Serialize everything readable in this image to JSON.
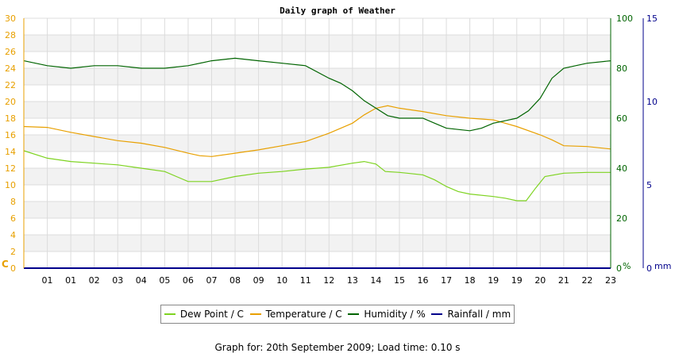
{
  "chart_data": {
    "type": "line",
    "title": "Daily graph of Weather",
    "x_ticks": [
      "01",
      "01",
      "02",
      "03",
      "04",
      "05",
      "06",
      "07",
      "08",
      "09",
      "10",
      "11",
      "12",
      "13",
      "14",
      "15",
      "16",
      "17",
      "18",
      "19",
      "19",
      "20",
      "21",
      "22",
      "23"
    ],
    "y_left": {
      "label": "C",
      "ticks": [
        0,
        2,
        4,
        6,
        8,
        10,
        12,
        14,
        16,
        18,
        20,
        22,
        24,
        26,
        28,
        30
      ],
      "range": [
        0,
        30
      ],
      "color": "#e8a000"
    },
    "y_right1": {
      "label": "%",
      "ticks": [
        0,
        20,
        40,
        60,
        80,
        100
      ],
      "range": [
        0,
        100
      ],
      "color": "#006400"
    },
    "y_right2": {
      "label": "mm",
      "ticks": [
        0,
        5,
        10,
        15
      ],
      "range": [
        0,
        15
      ],
      "color": "#00008b"
    },
    "series": [
      {
        "name": "Dew Point / C",
        "axis": "C",
        "color": "#7ed321",
        "points": [
          [
            0,
            14.1
          ],
          [
            1,
            13.2
          ],
          [
            2,
            12.8
          ],
          [
            3,
            12.6
          ],
          [
            4,
            12.4
          ],
          [
            5,
            12.0
          ],
          [
            6,
            11.6
          ],
          [
            6.5,
            11.0
          ],
          [
            7,
            10.4
          ],
          [
            8,
            10.4
          ],
          [
            9,
            11.0
          ],
          [
            10,
            11.4
          ],
          [
            11,
            11.6
          ],
          [
            12,
            11.9
          ],
          [
            13,
            12.1
          ],
          [
            14,
            12.6
          ],
          [
            14.5,
            12.8
          ],
          [
            15,
            12.5
          ],
          [
            15.4,
            11.6
          ],
          [
            16,
            11.5
          ],
          [
            17,
            11.2
          ],
          [
            17.5,
            10.6
          ],
          [
            18,
            9.8
          ],
          [
            18.5,
            9.2
          ],
          [
            19,
            8.9
          ],
          [
            20,
            8.6
          ],
          [
            20.5,
            8.4
          ],
          [
            21,
            8.1
          ],
          [
            21.4,
            8.1
          ],
          [
            21.8,
            9.6
          ],
          [
            22.2,
            11.0
          ],
          [
            23,
            11.4
          ],
          [
            24,
            11.5
          ],
          [
            25,
            11.5
          ]
        ]
      },
      {
        "name": "Temperature / C",
        "axis": "C",
        "color": "#e8a000",
        "points": [
          [
            0,
            17.0
          ],
          [
            1,
            16.9
          ],
          [
            2,
            16.3
          ],
          [
            3,
            15.8
          ],
          [
            4,
            15.3
          ],
          [
            5,
            15.0
          ],
          [
            6,
            14.5
          ],
          [
            7,
            13.8
          ],
          [
            7.5,
            13.5
          ],
          [
            8,
            13.4
          ],
          [
            9,
            13.8
          ],
          [
            10,
            14.2
          ],
          [
            11,
            14.7
          ],
          [
            12,
            15.2
          ],
          [
            13,
            16.2
          ],
          [
            14,
            17.4
          ],
          [
            14.5,
            18.4
          ],
          [
            15,
            19.2
          ],
          [
            15.5,
            19.5
          ],
          [
            16,
            19.2
          ],
          [
            17,
            18.8
          ],
          [
            18,
            18.3
          ],
          [
            19,
            18.0
          ],
          [
            20,
            17.8
          ],
          [
            21,
            17.0
          ],
          [
            22,
            16.0
          ],
          [
            22.5,
            15.4
          ],
          [
            23,
            14.7
          ],
          [
            24,
            14.6
          ],
          [
            25,
            14.3
          ]
        ]
      },
      {
        "name": "Humidity / %",
        "axis": "%",
        "color": "#006400",
        "points": [
          [
            0,
            83
          ],
          [
            0.5,
            82
          ],
          [
            1,
            81
          ],
          [
            2,
            80
          ],
          [
            3,
            81
          ],
          [
            4,
            81
          ],
          [
            5,
            80
          ],
          [
            6,
            80
          ],
          [
            7,
            81
          ],
          [
            8,
            83
          ],
          [
            9,
            84
          ],
          [
            10,
            83
          ],
          [
            11,
            82
          ],
          [
            12,
            81
          ],
          [
            13,
            76
          ],
          [
            13.5,
            74
          ],
          [
            14,
            71
          ],
          [
            14.5,
            67
          ],
          [
            15,
            64
          ],
          [
            15.5,
            61
          ],
          [
            16,
            60
          ],
          [
            17,
            60
          ],
          [
            17.5,
            58
          ],
          [
            18,
            56
          ],
          [
            19,
            55
          ],
          [
            19.5,
            56
          ],
          [
            20,
            58
          ],
          [
            20.5,
            59
          ],
          [
            21,
            60
          ],
          [
            21.5,
            63
          ],
          [
            22,
            68
          ],
          [
            22.5,
            76
          ],
          [
            23,
            80
          ],
          [
            24,
            82
          ],
          [
            25,
            83
          ]
        ]
      },
      {
        "name": "Rainfall / mm",
        "axis": "mm",
        "color": "#00008b",
        "points": [
          [
            0,
            0
          ],
          [
            25,
            0
          ]
        ]
      }
    ]
  },
  "footer": {
    "graph_for": "Graph for: 20th September 2009; Load time: 0.10 s"
  }
}
